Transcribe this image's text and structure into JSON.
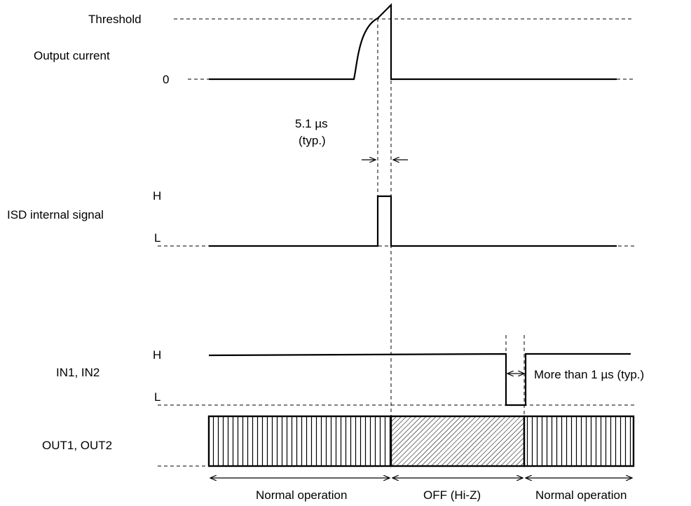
{
  "labels": {
    "threshold": "Threshold",
    "output_current": "Output current",
    "zero": "0",
    "timing_value": "5.1 µs",
    "timing_typ": "(typ.)",
    "isd_signal": "ISD internal signal",
    "isd_high": "H",
    "isd_low": "L",
    "in_signal": "IN1, IN2",
    "in_high": "H",
    "in_low": "L",
    "in_pulse_note": "More than 1 µs (typ.)",
    "out_signal": "OUT1, OUT2",
    "phase_normal_1": "Normal operation",
    "phase_off": "OFF (Hi-Z)",
    "phase_normal_2": "Normal operation"
  }
}
